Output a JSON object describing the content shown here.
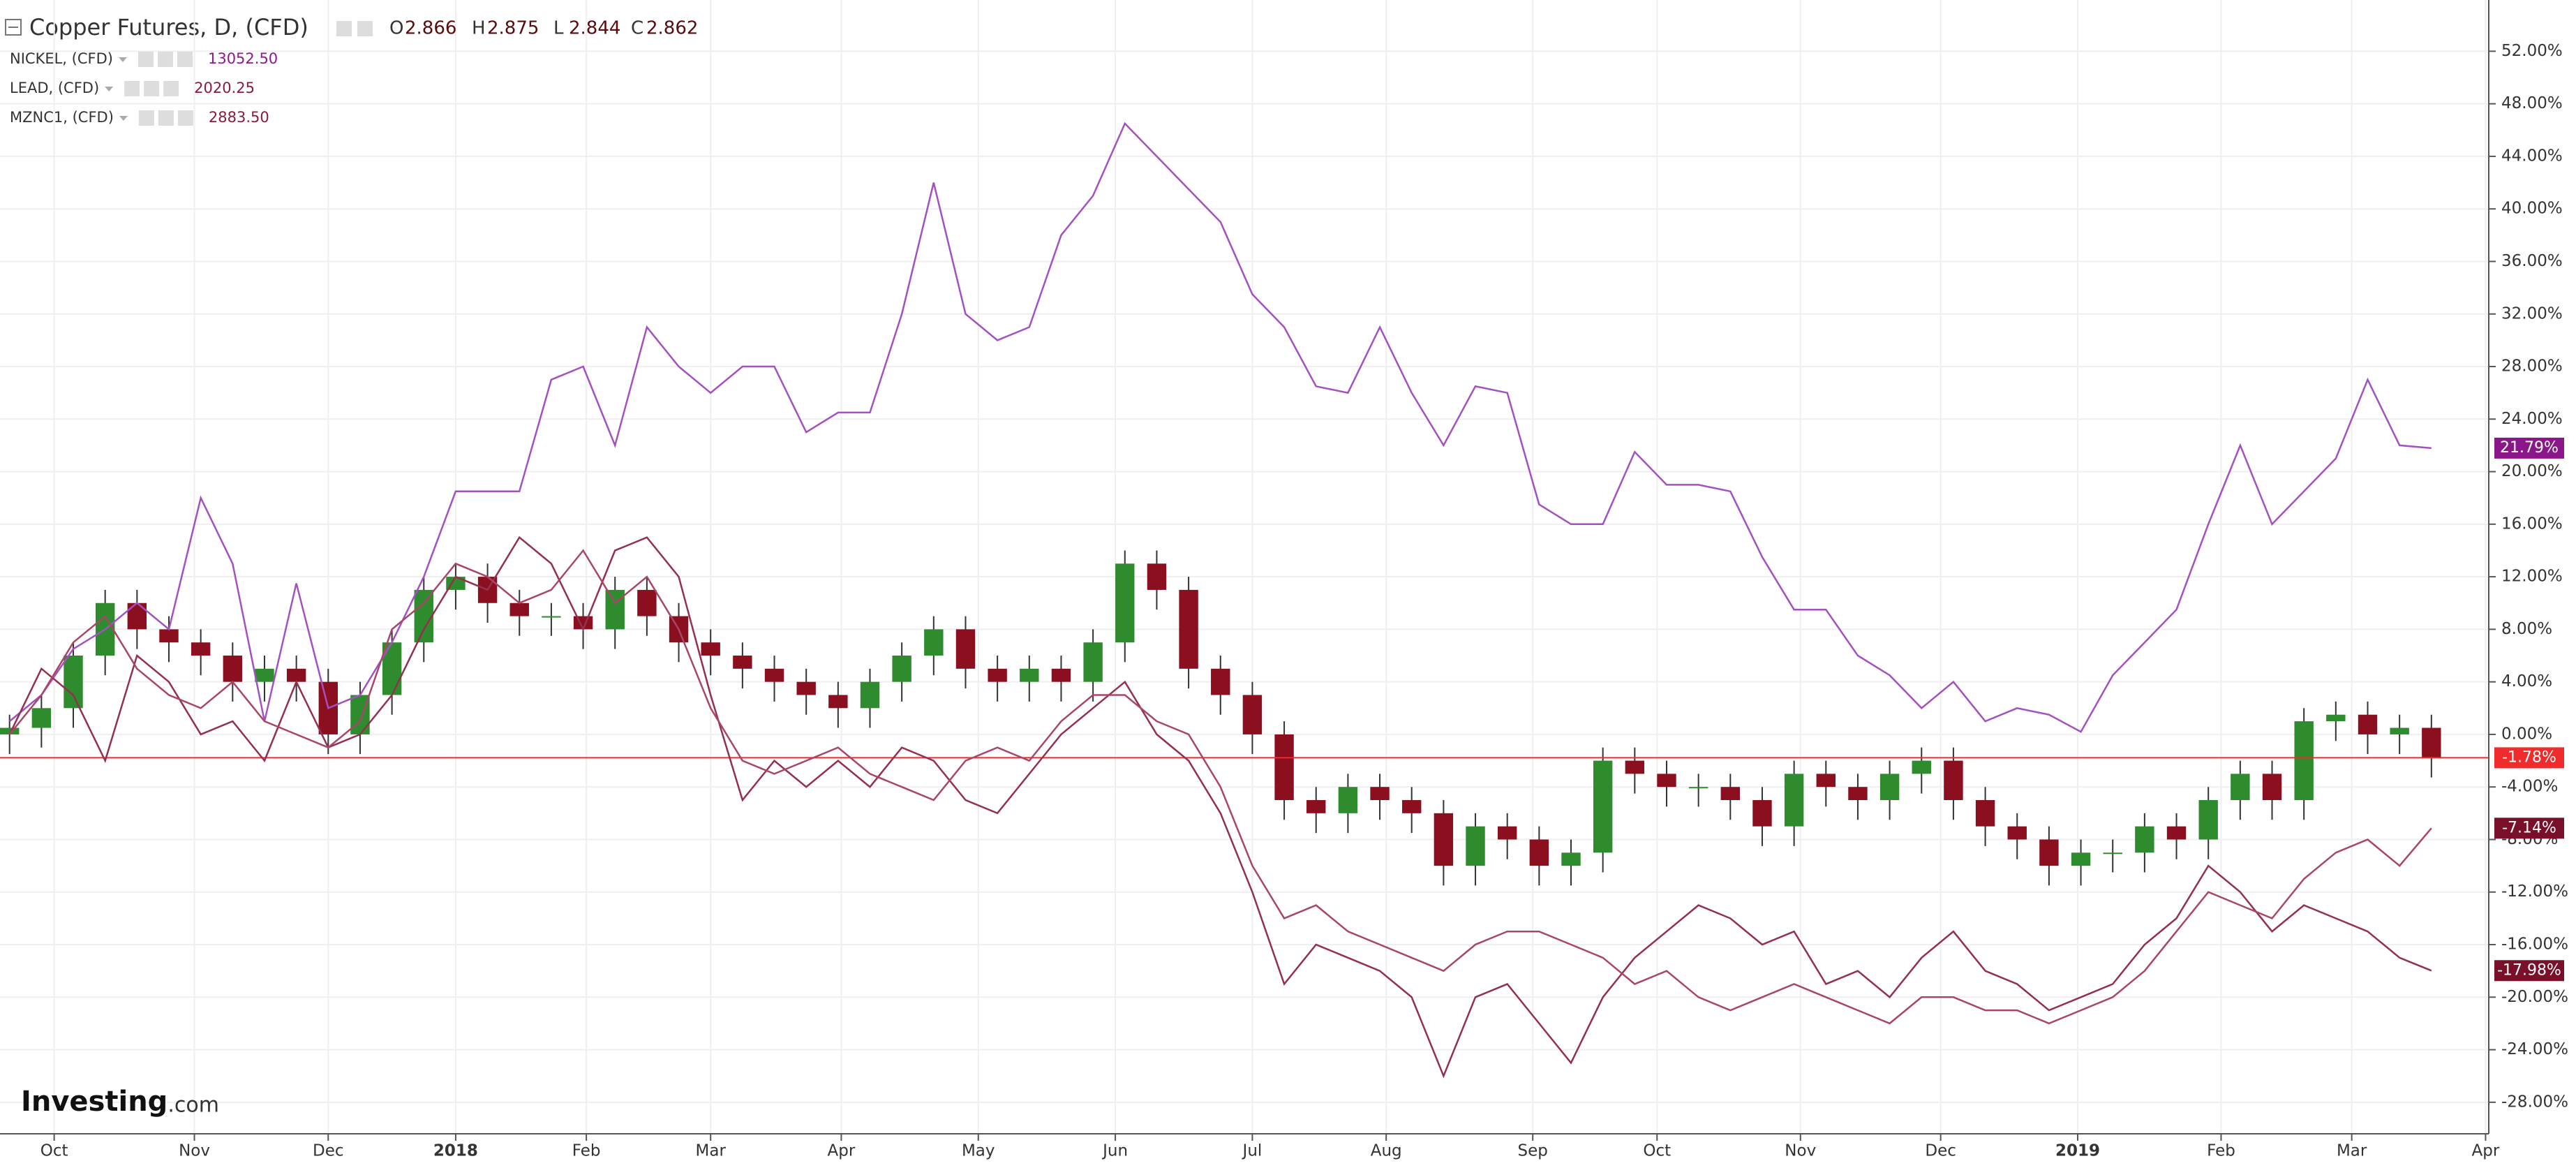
{
  "chart_data": {
    "type": "candlestick",
    "title": "Copper Futures, D, (CFD)",
    "ohlc": [
      {
        "label": "O",
        "value": "2.866"
      },
      {
        "label": "H",
        "value": "2.875"
      },
      {
        "label": "L",
        "value": "2.844"
      },
      {
        "label": "C",
        "value": "2.862"
      }
    ],
    "logo": {
      "main": "Investing",
      "suffix": ".com"
    },
    "xlim": [
      -0.3,
      77.8
    ],
    "xticks": [
      {
        "value": 1.4,
        "label": "Oct"
      },
      {
        "value": 5.8,
        "label": "Nov"
      },
      {
        "value": 10.0,
        "label": "Dec"
      },
      {
        "value": 14.0,
        "label": "2018"
      },
      {
        "value": 18.1,
        "label": "Feb"
      },
      {
        "value": 22.0,
        "label": "Mar"
      },
      {
        "value": 26.1,
        "label": "Apr"
      },
      {
        "value": 30.4,
        "label": "May"
      },
      {
        "value": 34.7,
        "label": "Jun"
      },
      {
        "value": 39.0,
        "label": "Jul"
      },
      {
        "value": 43.2,
        "label": "Aug"
      },
      {
        "value": 47.8,
        "label": "Sep"
      },
      {
        "value": 51.7,
        "label": "Oct"
      },
      {
        "value": 56.2,
        "label": "Nov"
      },
      {
        "value": 60.6,
        "label": "Dec"
      },
      {
        "value": 64.9,
        "label": "2019"
      },
      {
        "value": 69.4,
        "label": "Feb"
      },
      {
        "value": 73.5,
        "label": "Mar"
      },
      {
        "value": 77.7,
        "label": "Apr"
      }
    ],
    "ylim": [
      -30.4,
      55.9
    ],
    "yticks": [
      {
        "value": -28,
        "label": "-28.00%"
      },
      {
        "value": -24,
        "label": "-24.00%"
      },
      {
        "value": -20,
        "label": "-20.00%"
      },
      {
        "value": -16,
        "label": "-16.00%"
      },
      {
        "value": -12,
        "label": "-12.00%"
      },
      {
        "value": -8,
        "label": "-8.00%"
      },
      {
        "value": -4,
        "label": "-4.00%"
      },
      {
        "value": 0,
        "label": "0.00%"
      },
      {
        "value": 4,
        "label": "4.00%"
      },
      {
        "value": 8,
        "label": "8.00%"
      },
      {
        "value": 12,
        "label": "12.00%"
      },
      {
        "value": 16,
        "label": "16.00%"
      },
      {
        "value": 20,
        "label": "20.00%"
      },
      {
        "value": 24,
        "label": "24.00%"
      },
      {
        "value": 28,
        "label": "28.00%"
      },
      {
        "value": 32,
        "label": "32.00%"
      },
      {
        "value": 36,
        "label": "36.00%"
      },
      {
        "value": 40,
        "label": "40.00%"
      },
      {
        "value": 44,
        "label": "44.00%"
      },
      {
        "value": 48,
        "label": "48.00%"
      },
      {
        "value": 52,
        "label": "52.00%"
      }
    ],
    "grid": true,
    "series": [
      {
        "type": "candlestick",
        "up_color": "#2e8b2e",
        "down_color": "#8b0f1f",
        "tag_color": "#ef2b2b",
        "last_label": "-1.78%",
        "open": [
          0,
          0.5,
          2,
          6,
          10,
          8,
          7,
          6,
          4,
          5,
          4,
          0,
          3,
          7,
          11,
          12,
          10,
          9,
          9,
          8,
          11,
          9,
          7,
          6,
          5,
          4,
          3,
          2,
          4,
          6,
          8,
          5,
          4,
          5,
          4,
          7,
          13,
          11,
          5,
          3,
          0,
          -5,
          -6,
          -4,
          -5,
          -6,
          -10,
          -7,
          -8,
          -10,
          -9,
          -2,
          -3,
          -4,
          -4,
          -5,
          -7,
          -3,
          -4,
          -5,
          -3,
          -2,
          -5,
          -7,
          -8,
          -10,
          -9,
          -9,
          -7,
          -8,
          -5,
          -3,
          -5,
          1,
          1.5,
          0,
          0.5
        ],
        "high": [
          1.5,
          3,
          7,
          11,
          11,
          9,
          8,
          7,
          6,
          6,
          5,
          4,
          8,
          12,
          13,
          13,
          11,
          10,
          10,
          12,
          12,
          10,
          8,
          7,
          6,
          5,
          4,
          5,
          7,
          9,
          9,
          6,
          6,
          6,
          8,
          14,
          14,
          12,
          6,
          4,
          1,
          -4,
          -3,
          -3,
          -4,
          -5,
          -6,
          -6,
          -7,
          -8,
          -1,
          -1,
          -2,
          -3,
          -3,
          -4,
          -2,
          -2,
          -3,
          -2,
          -1,
          -1,
          -4,
          -6,
          -7,
          -8,
          -8,
          -6,
          -6,
          -4,
          -2,
          -2,
          2,
          2.5,
          2.5,
          1.5,
          1.5
        ],
        "low": [
          -1.5,
          -1,
          0.5,
          4.5,
          6.5,
          5.5,
          4.5,
          2.5,
          2.5,
          2.5,
          -1.5,
          -1.5,
          1.5,
          5.5,
          9.5,
          8.5,
          7.5,
          7.5,
          6.5,
          6.5,
          7.5,
          5.5,
          4.5,
          3.5,
          2.5,
          1.5,
          0.5,
          0.5,
          2.5,
          4.5,
          3.5,
          2.5,
          2.5,
          2.5,
          2.5,
          5.5,
          9.5,
          3.5,
          1.5,
          -1.5,
          -6.5,
          -7.5,
          -7.5,
          -6.5,
          -7.5,
          -11.5,
          -11.5,
          -9.5,
          -11.5,
          -11.5,
          -10.5,
          -4.5,
          -5.5,
          -5.5,
          -6.5,
          -8.5,
          -8.5,
          -5.5,
          -6.5,
          -6.5,
          -4.5,
          -6.5,
          -8.5,
          -9.5,
          -11.5,
          -11.5,
          -10.5,
          -10.5,
          -9.5,
          -9.5,
          -6.5,
          -6.5,
          -6.5,
          -0.5,
          -1.5,
          -1.5,
          -3.28
        ],
        "close": [
          0.5,
          2,
          6,
          10,
          8,
          7,
          6,
          4,
          5,
          4,
          0,
          3,
          7,
          11,
          12,
          10,
          9,
          9,
          8,
          11,
          9,
          7,
          6,
          5,
          4,
          3,
          2,
          4,
          6,
          8,
          5,
          4,
          5,
          4,
          7,
          13,
          11,
          5,
          3,
          0,
          -5,
          -6,
          -4,
          -5,
          -6,
          -10,
          -7,
          -8,
          -10,
          -9,
          -2,
          -3,
          -4,
          -4,
          -5,
          -7,
          -3,
          -4,
          -5,
          -3,
          -2,
          -5,
          -7,
          -8,
          -10,
          -9,
          -9,
          -7,
          -8,
          -5,
          -3,
          -5,
          1,
          1.5,
          0,
          0.5,
          -1.78
        ]
      },
      {
        "type": "line",
        "name": "NICKEL, (CFD)",
        "legend_value": "13052.50",
        "color": "#a451c0",
        "value_color": "#8b1a8b",
        "tag_color": "#8a168a",
        "last_label": "21.79%",
        "values": [
          1,
          3,
          6.5,
          8,
          10,
          8,
          18,
          13,
          1,
          11.5,
          2,
          3,
          7,
          12,
          18.5,
          18.5,
          18.5,
          27,
          28,
          22,
          31,
          28,
          26,
          28,
          28,
          23,
          24.5,
          24.5,
          32,
          42,
          32,
          30,
          31,
          38,
          41,
          46.5,
          44,
          41.5,
          39,
          33.5,
          31,
          26.5,
          26,
          31,
          26,
          22,
          26.5,
          26,
          17.5,
          16,
          16,
          21.5,
          19,
          19,
          18.5,
          13.5,
          9.5,
          9.5,
          6,
          4.5,
          2,
          4,
          1,
          2,
          1.5,
          0.2,
          4.5,
          7,
          9.5,
          16,
          22,
          16,
          18.5,
          21,
          27,
          22,
          21.79
        ]
      },
      {
        "type": "line",
        "name": "LEAD, (CFD)",
        "legend_value": "2020.25",
        "color": "#94304f",
        "value_color": "#8b1a3c",
        "tag_color": "#7a0f2a",
        "last_label": "-17.98%",
        "values": [
          0,
          5,
          3,
          -2,
          6,
          4,
          0,
          1,
          -2,
          4,
          -1,
          0,
          3,
          8,
          12,
          11,
          15,
          13,
          8,
          14,
          15,
          12,
          3,
          -5,
          -2,
          -4,
          -2,
          -4,
          -1,
          -2,
          -5,
          -6,
          -3,
          0,
          2,
          4,
          0,
          -2,
          -6,
          -12,
          -19,
          -16,
          -17,
          -18,
          -20,
          -26,
          -20,
          -19,
          -22,
          -25,
          -20,
          -17,
          -15,
          -13,
          -14,
          -16,
          -15,
          -19,
          -18,
          -20,
          -17,
          -15,
          -18,
          -19,
          -21,
          -20,
          -19,
          -16,
          -14,
          -10,
          -12,
          -15,
          -13,
          -14,
          -15,
          -17,
          -17.98
        ]
      },
      {
        "type": "line",
        "name": "MZNC1, (CFD)",
        "legend_value": "2883.50",
        "color": "#a8466a",
        "value_color": "#8b1a3c",
        "tag_color": "#7a0f2a",
        "last_label": "-7.14%",
        "values": [
          0,
          3,
          7,
          9,
          5,
          3,
          2,
          4,
          1,
          0,
          -1,
          1,
          8,
          10,
          13,
          12,
          10,
          11,
          14,
          10,
          12,
          8,
          2,
          -2,
          -3,
          -2,
          -1,
          -3,
          -4,
          -5,
          -2,
          -1,
          -2,
          1,
          3,
          3,
          1,
          0,
          -4,
          -10,
          -14,
          -13,
          -15,
          -16,
          -17,
          -18,
          -16,
          -15,
          -15,
          -16,
          -17,
          -19,
          -18,
          -20,
          -21,
          -20,
          -19,
          -20,
          -21,
          -22,
          -20,
          -20,
          -21,
          -21,
          -22,
          -21,
          -20,
          -18,
          -15,
          -12,
          -13,
          -14,
          -11,
          -9,
          -8,
          -10,
          -7.14
        ]
      }
    ]
  }
}
